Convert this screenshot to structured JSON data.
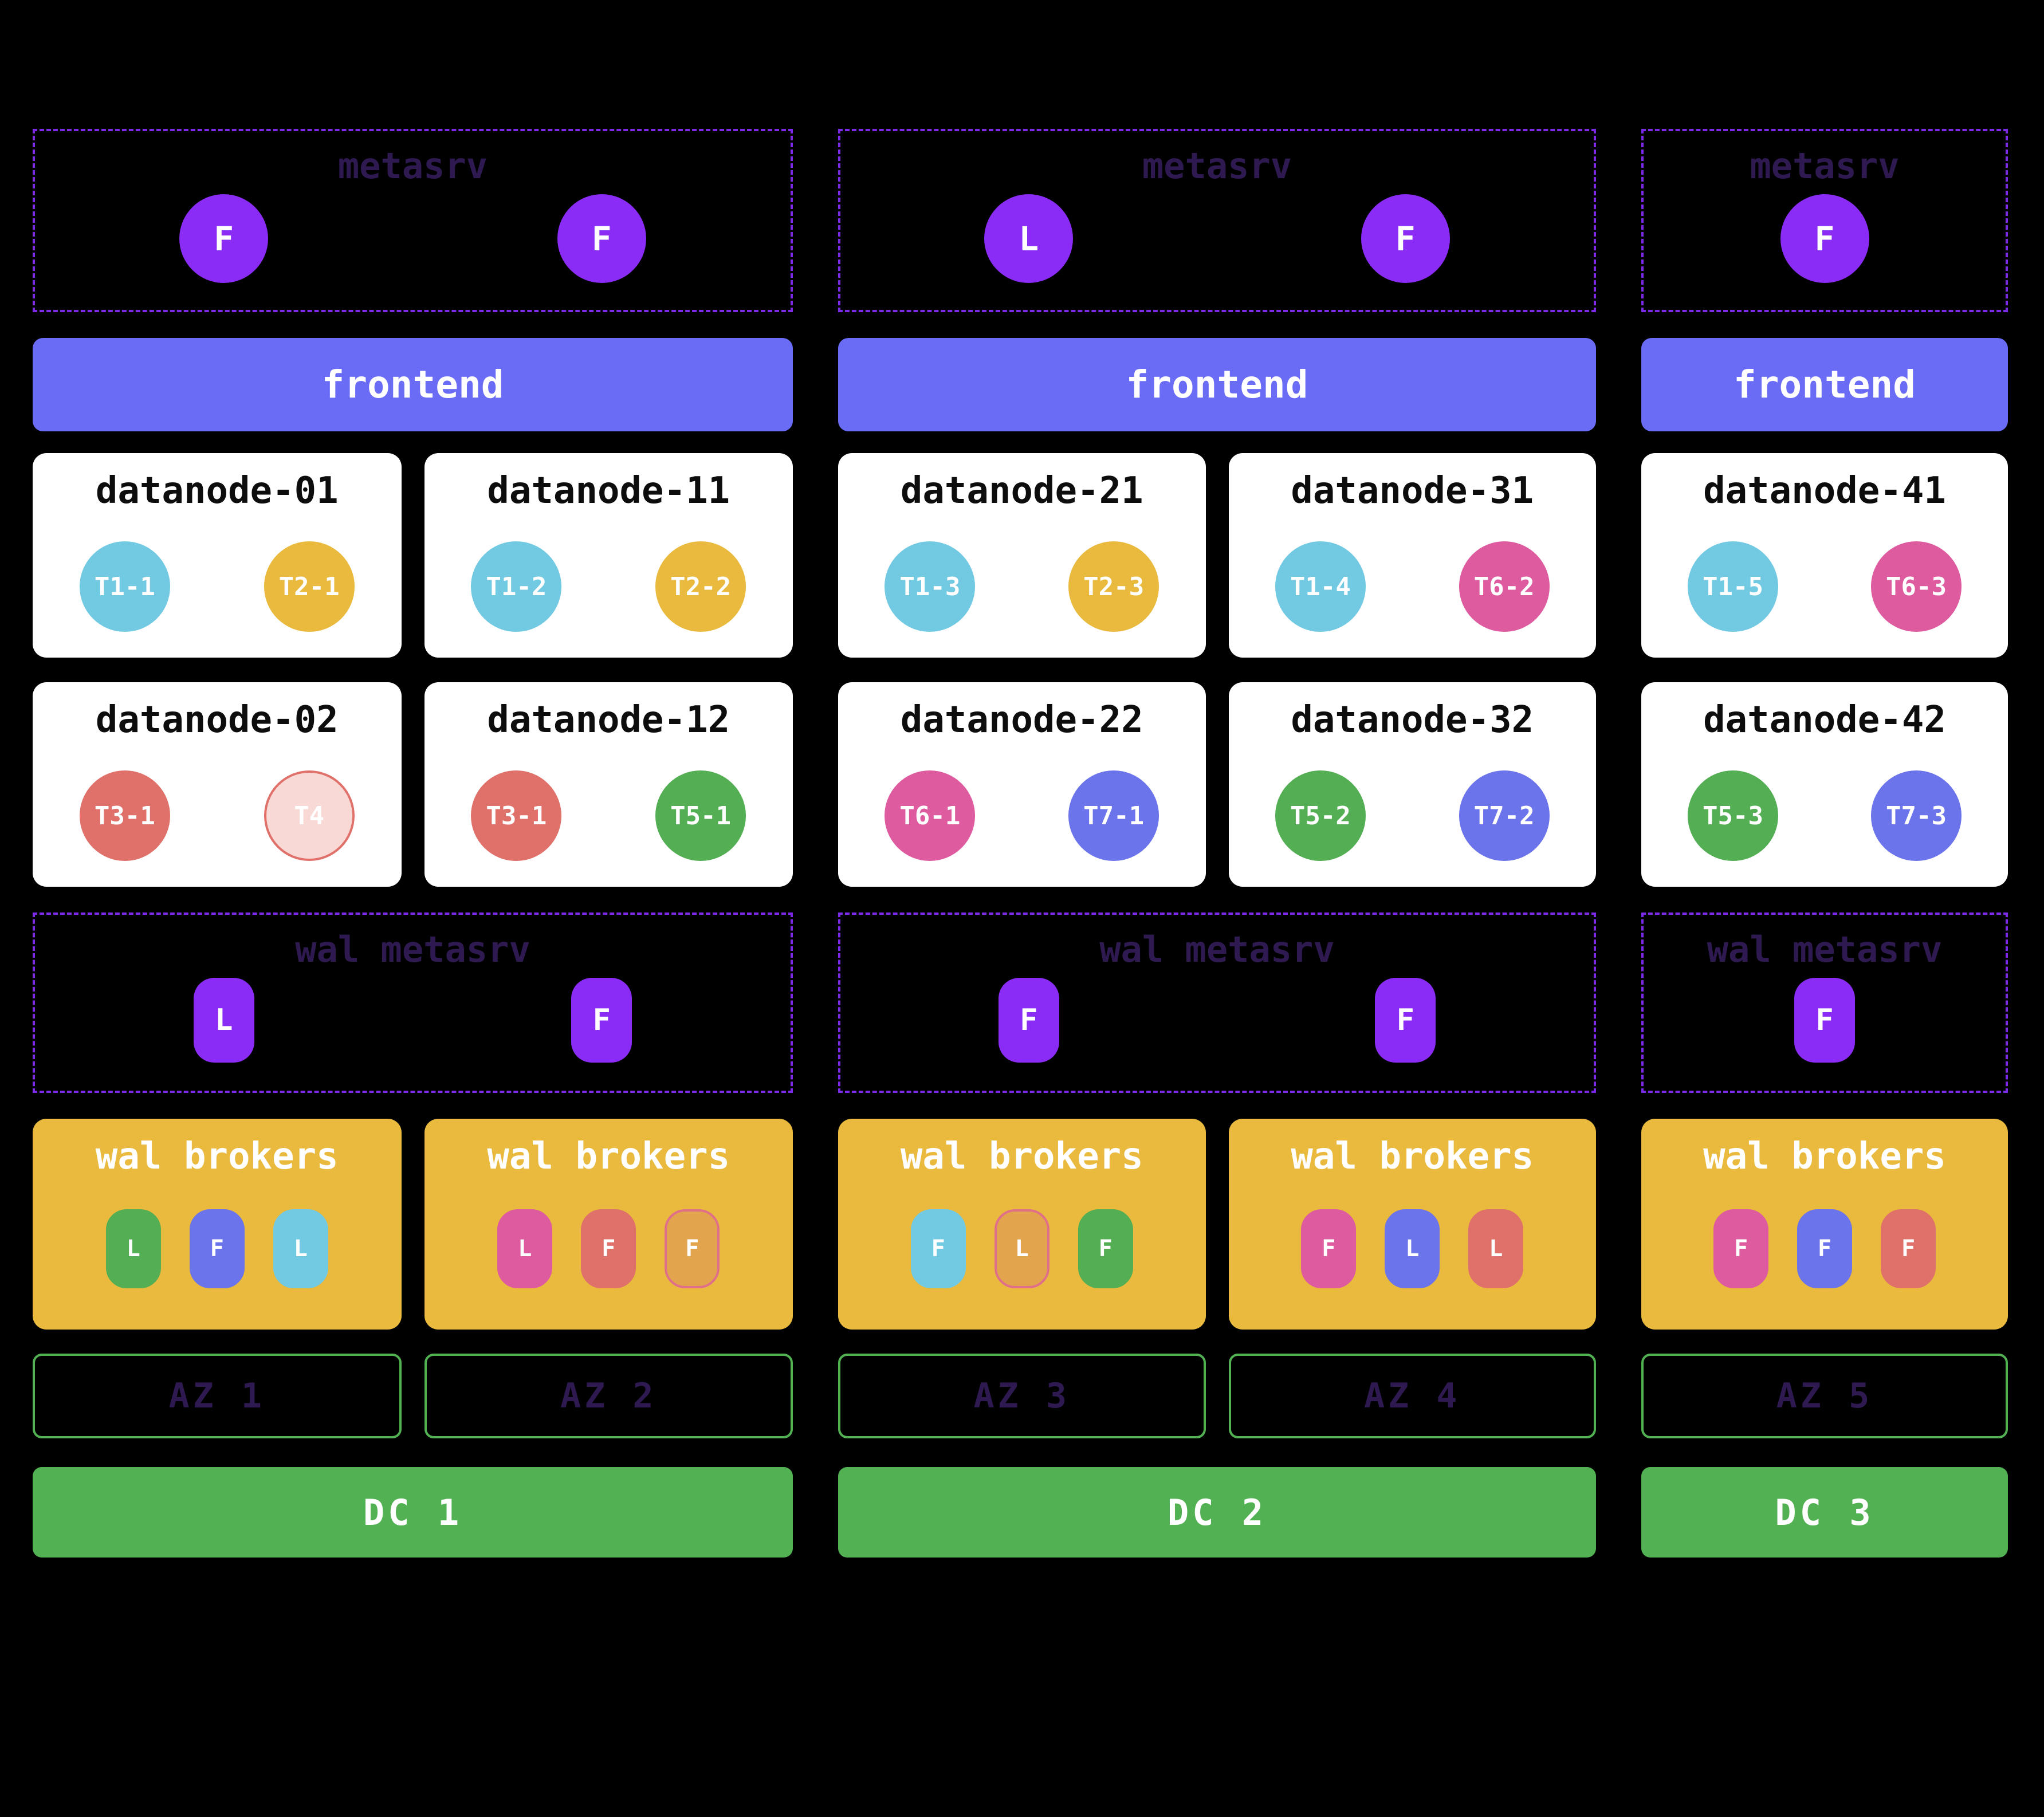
{
  "palette": {
    "background": "#000000",
    "dashed_purple": "#7d2ae8",
    "dim_label": "#2e1a50",
    "node_violet": "#8a2cf5",
    "frontend": "#6b6cf5",
    "broker_box_gold": "#e9ba3d",
    "dc_green": "#52b152",
    "az_green": "#52b152",
    "cyan": "#72c9e2",
    "gold": "#e9ba3d",
    "salmon": "#e0716a",
    "pink": "#de5b9f",
    "green": "#54ae54",
    "indigo": "#6b74ea",
    "pending_bg": "#f9d9d6",
    "orange": "#e2a44d",
    "orange_border": "#e0708a"
  },
  "dcs": [
    {
      "name": "DC 1",
      "frontend": "frontend",
      "metasrv": {
        "label": "metasrv",
        "nodes": [
          {
            "letter": "F"
          },
          {
            "letter": "F"
          }
        ]
      },
      "wal_metasrv": {
        "label": "wal metasrv",
        "nodes": [
          {
            "letter": "L"
          },
          {
            "letter": "F"
          }
        ]
      },
      "zones": [
        {
          "az": "AZ 1",
          "datanodes": [
            {
              "name": "datanode-01",
              "regions": [
                {
                  "label": "T1-1",
                  "bg": "#72c9e2",
                  "bd": "#72c9e2"
                },
                {
                  "label": "T2-1",
                  "bg": "#e9ba3d",
                  "bd": "#e9ba3d"
                }
              ]
            },
            {
              "name": "datanode-02",
              "regions": [
                {
                  "label": "T3-1",
                  "bg": "#e0716a",
                  "bd": "#e0716a"
                },
                {
                  "label": "T4",
                  "bg": "#f9d9d6",
                  "bd": "#e0716a"
                }
              ]
            }
          ],
          "brokers": {
            "label": "wal brokers",
            "nodes": [
              {
                "letter": "L",
                "bg": "#54ae54",
                "bd": "#54ae54"
              },
              {
                "letter": "F",
                "bg": "#6b74ea",
                "bd": "#6b74ea"
              },
              {
                "letter": "L",
                "bg": "#72c9e2",
                "bd": "#72c9e2"
              }
            ]
          }
        },
        {
          "az": "AZ 2",
          "datanodes": [
            {
              "name": "datanode-11",
              "regions": [
                {
                  "label": "T1-2",
                  "bg": "#72c9e2",
                  "bd": "#72c9e2"
                },
                {
                  "label": "T2-2",
                  "bg": "#e9ba3d",
                  "bd": "#e9ba3d"
                }
              ]
            },
            {
              "name": "datanode-12",
              "regions": [
                {
                  "label": "T3-1",
                  "bg": "#e0716a",
                  "bd": "#e0716a"
                },
                {
                  "label": "T5-1",
                  "bg": "#54ae54",
                  "bd": "#54ae54"
                }
              ]
            }
          ],
          "brokers": {
            "label": "wal brokers",
            "nodes": [
              {
                "letter": "L",
                "bg": "#de5b9f",
                "bd": "#de5b9f"
              },
              {
                "letter": "F",
                "bg": "#e0716a",
                "bd": "#e0716a"
              },
              {
                "letter": "F",
                "bg": "#e2a44d",
                "bd": "#e0708a"
              }
            ]
          }
        }
      ]
    },
    {
      "name": "DC 2",
      "frontend": "frontend",
      "metasrv": {
        "label": "metasrv",
        "nodes": [
          {
            "letter": "L"
          },
          {
            "letter": "F"
          }
        ]
      },
      "wal_metasrv": {
        "label": "wal metasrv",
        "nodes": [
          {
            "letter": "F"
          },
          {
            "letter": "F"
          }
        ]
      },
      "zones": [
        {
          "az": "AZ 3",
          "datanodes": [
            {
              "name": "datanode-21",
              "regions": [
                {
                  "label": "T1-3",
                  "bg": "#72c9e2",
                  "bd": "#72c9e2"
                },
                {
                  "label": "T2-3",
                  "bg": "#e9ba3d",
                  "bd": "#e9ba3d"
                }
              ]
            },
            {
              "name": "datanode-22",
              "regions": [
                {
                  "label": "T6-1",
                  "bg": "#de5b9f",
                  "bd": "#de5b9f"
                },
                {
                  "label": "T7-1",
                  "bg": "#6b74ea",
                  "bd": "#6b74ea"
                }
              ]
            }
          ],
          "brokers": {
            "label": "wal brokers",
            "nodes": [
              {
                "letter": "F",
                "bg": "#72c9e2",
                "bd": "#72c9e2"
              },
              {
                "letter": "L",
                "bg": "#e2a44d",
                "bd": "#e0708a"
              },
              {
                "letter": "F",
                "bg": "#54ae54",
                "bd": "#54ae54"
              }
            ]
          }
        },
        {
          "az": "AZ 4",
          "datanodes": [
            {
              "name": "datanode-31",
              "regions": [
                {
                  "label": "T1-4",
                  "bg": "#72c9e2",
                  "bd": "#72c9e2"
                },
                {
                  "label": "T6-2",
                  "bg": "#de5b9f",
                  "bd": "#de5b9f"
                }
              ]
            },
            {
              "name": "datanode-32",
              "regions": [
                {
                  "label": "T5-2",
                  "bg": "#54ae54",
                  "bd": "#54ae54"
                },
                {
                  "label": "T7-2",
                  "bg": "#6b74ea",
                  "bd": "#6b74ea"
                }
              ]
            }
          ],
          "brokers": {
            "label": "wal brokers",
            "nodes": [
              {
                "letter": "F",
                "bg": "#de5b9f",
                "bd": "#de5b9f"
              },
              {
                "letter": "L",
                "bg": "#6b74ea",
                "bd": "#6b74ea"
              },
              {
                "letter": "L",
                "bg": "#e0716a",
                "bd": "#e0716a"
              }
            ]
          }
        }
      ]
    },
    {
      "name": "DC 3",
      "frontend": "frontend",
      "metasrv": {
        "label": "metasrv",
        "nodes": [
          {
            "letter": "F"
          }
        ]
      },
      "wal_metasrv": {
        "label": "wal metasrv",
        "nodes": [
          {
            "letter": "F"
          }
        ]
      },
      "zones": [
        {
          "az": "AZ 5",
          "datanodes": [
            {
              "name": "datanode-41",
              "regions": [
                {
                  "label": "T1-5",
                  "bg": "#72c9e2",
                  "bd": "#72c9e2"
                },
                {
                  "label": "T6-3",
                  "bg": "#de5b9f",
                  "bd": "#de5b9f"
                }
              ]
            },
            {
              "name": "datanode-42",
              "regions": [
                {
                  "label": "T5-3",
                  "bg": "#54ae54",
                  "bd": "#54ae54"
                },
                {
                  "label": "T7-3",
                  "bg": "#6b74ea",
                  "bd": "#6b74ea"
                }
              ]
            }
          ],
          "brokers": {
            "label": "wal brokers",
            "nodes": [
              {
                "letter": "F",
                "bg": "#de5b9f",
                "bd": "#de5b9f"
              },
              {
                "letter": "F",
                "bg": "#6b74ea",
                "bd": "#6b74ea"
              },
              {
                "letter": "F",
                "bg": "#e0716a",
                "bd": "#e0716a"
              }
            ]
          }
        }
      ]
    }
  ]
}
